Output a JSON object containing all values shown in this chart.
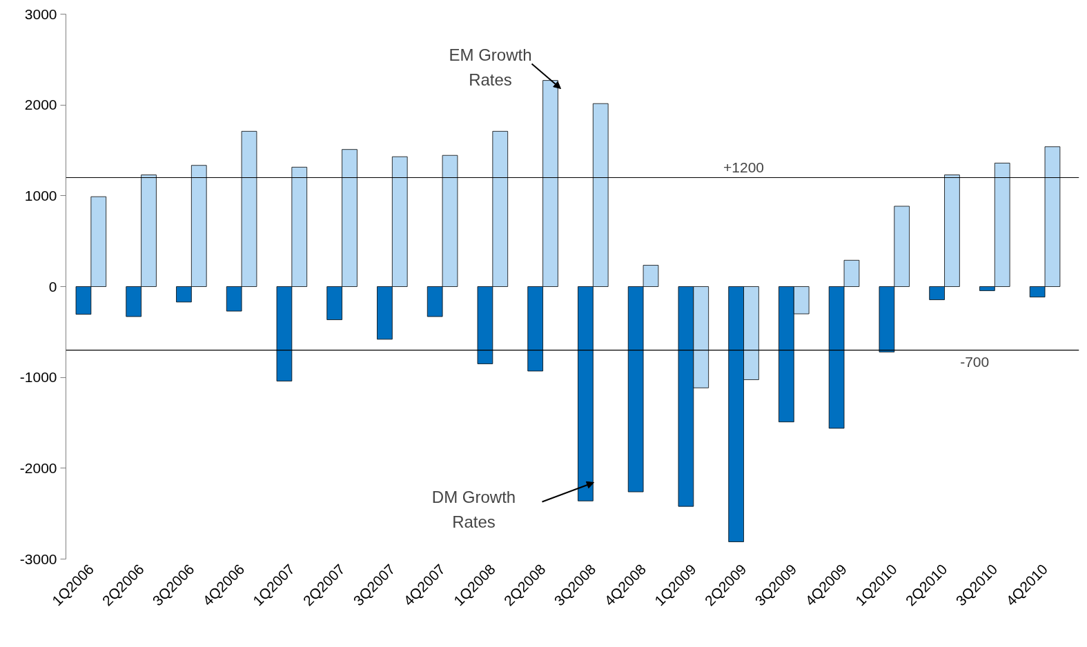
{
  "chart_data": {
    "type": "bar",
    "categories": [
      "1Q2006",
      "2Q2006",
      "3Q2006",
      "4Q2006",
      "1Q2007",
      "2Q2007",
      "3Q2007",
      "4Q2007",
      "1Q2008",
      "2Q2008",
      "3Q2008",
      "4Q2008",
      "1Q2009",
      "2Q2009",
      "3Q2009",
      "4Q2009",
      "1Q2010",
      "2Q2010",
      "3Q2010",
      "4Q2010"
    ],
    "series": [
      {
        "color": "#0070c0",
        "values": [
          -305,
          -330,
          -170,
          -270,
          -1040,
          -365,
          -580,
          -330,
          -850,
          -930,
          -2360,
          -2260,
          -2420,
          -2810,
          -1490,
          -1560,
          -720,
          -145,
          -45,
          -115
        ]
      },
      {
        "color": "#b3d7f3",
        "values": [
          990,
          1230,
          1335,
          1710,
          1315,
          1510,
          1430,
          1445,
          1710,
          2270,
          2015,
          235,
          -1115,
          -1025,
          -300,
          290,
          885,
          1230,
          1360,
          1540
        ]
      }
    ],
    "ylim": [
      -3000,
      3000
    ],
    "yticks": [
      -3000,
      -2000,
      -1000,
      0,
      1000,
      2000,
      3000
    ],
    "grid": false,
    "ref_lines": [
      {
        "axis": "y",
        "value": 1200,
        "label": "+1200",
        "color": "#000000"
      },
      {
        "axis": "y",
        "value": -700,
        "label": "-700",
        "color": "#000000"
      }
    ],
    "annotations": [
      "EM Growth\nRates",
      "DM Growth\nRates"
    ]
  }
}
